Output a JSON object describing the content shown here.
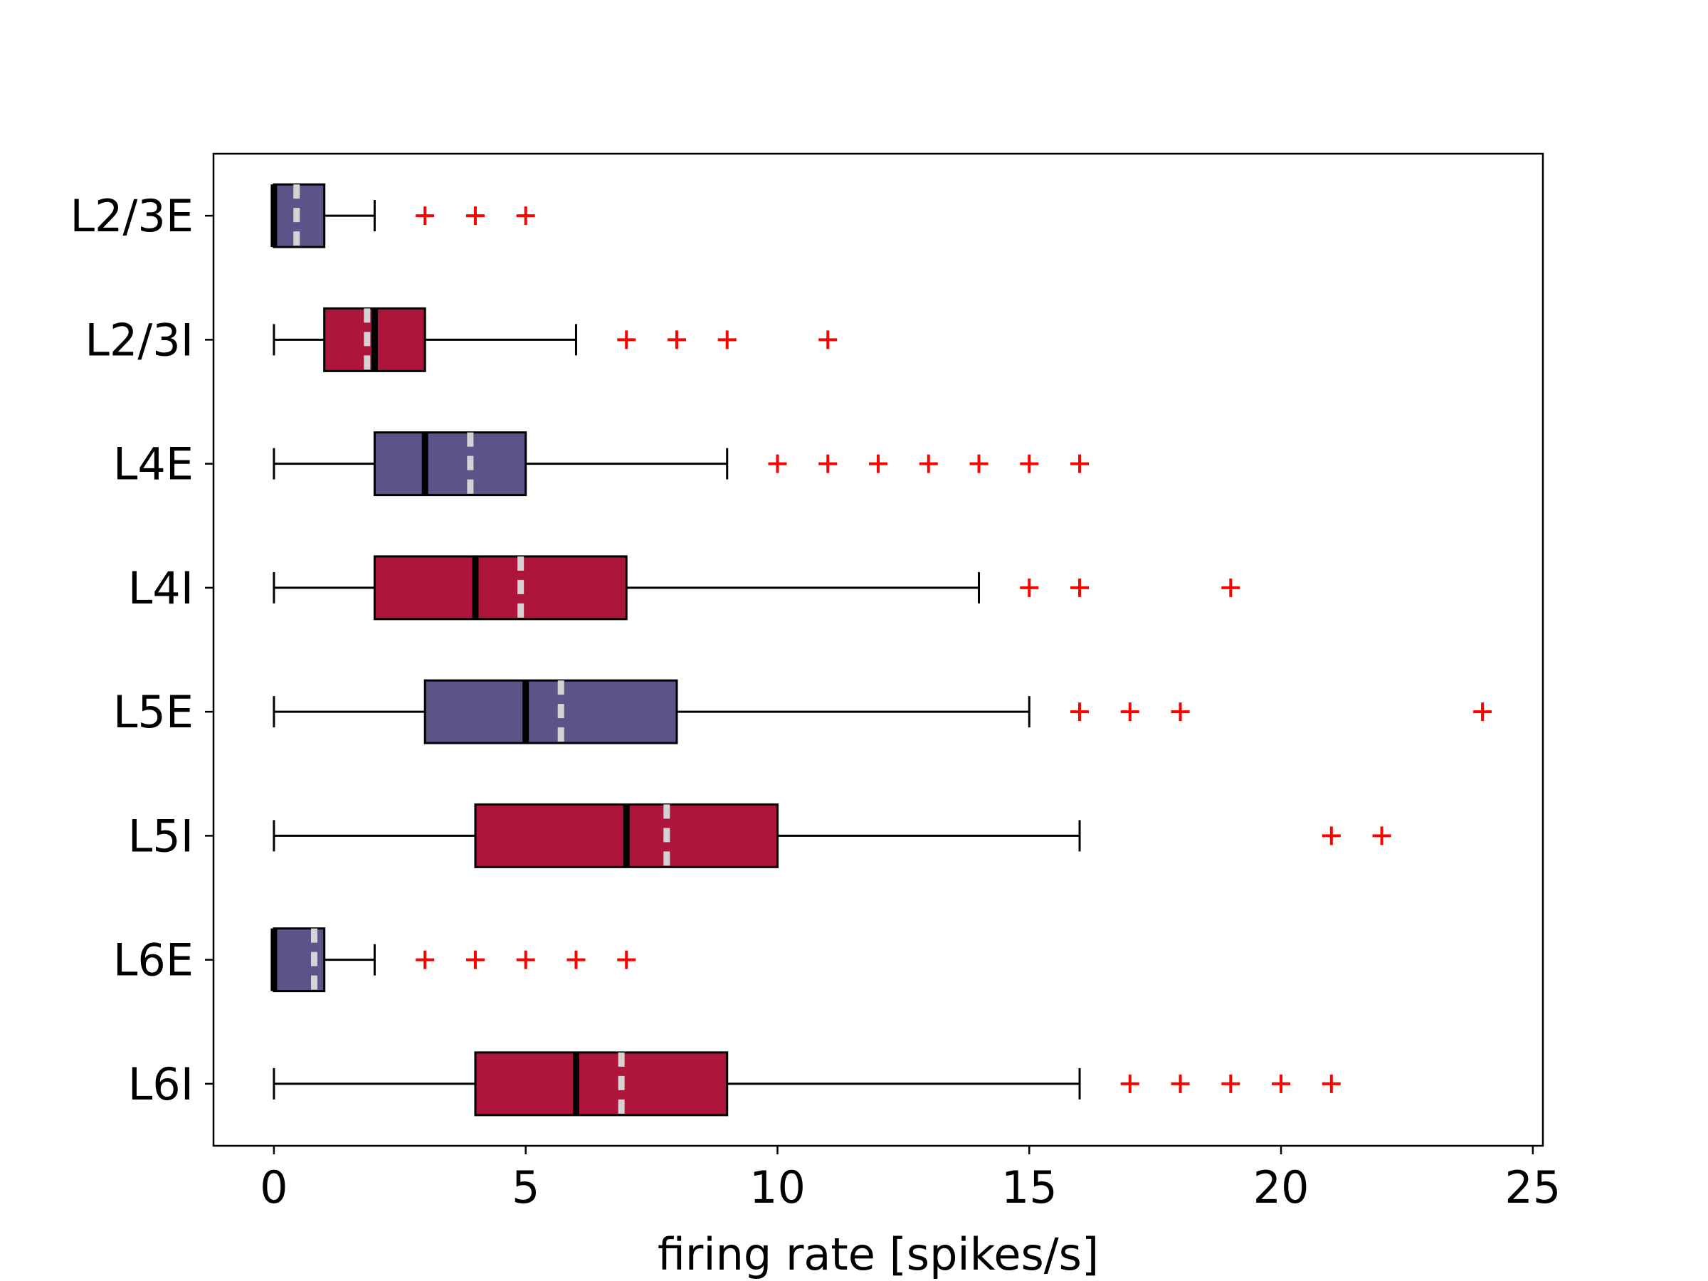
{
  "chart_data": {
    "type": "boxplot",
    "orientation": "horizontal",
    "xlabel": "firing rate [spikes/s]",
    "ylabel": "",
    "xlim": [
      -1.2,
      25.2
    ],
    "xticks": [
      0,
      5,
      10,
      15,
      20,
      25
    ],
    "grid": false,
    "legend": "none",
    "colors": {
      "excitatory": "#5b5488",
      "inhibitory": "#ad153a",
      "median": "#000000",
      "mean": "#d3d3d3",
      "outlier": "#ff0000"
    },
    "boxes": [
      {
        "label": "L2/3E",
        "color": "excitatory",
        "whisker_low": 0,
        "q1": 0,
        "median": 0,
        "mean": 0.45,
        "q3": 1,
        "whisker_high": 2,
        "outliers": [
          3,
          4,
          5
        ]
      },
      {
        "label": "L2/3I",
        "color": "inhibitory",
        "whisker_low": 0,
        "q1": 1,
        "median": 2,
        "mean": 1.85,
        "q3": 3,
        "whisker_high": 6,
        "outliers": [
          7,
          8,
          9,
          11
        ]
      },
      {
        "label": "L4E",
        "color": "excitatory",
        "whisker_low": 0,
        "q1": 2,
        "median": 3,
        "mean": 3.9,
        "q3": 5,
        "whisker_high": 9,
        "outliers": [
          10,
          11,
          12,
          13,
          14,
          15,
          16
        ]
      },
      {
        "label": "L4I",
        "color": "inhibitory",
        "whisker_low": 0,
        "q1": 2,
        "median": 4,
        "mean": 4.9,
        "q3": 7,
        "whisker_high": 14,
        "outliers": [
          15,
          16,
          19
        ]
      },
      {
        "label": "L5E",
        "color": "excitatory",
        "whisker_low": 0,
        "q1": 3,
        "median": 5,
        "mean": 5.7,
        "q3": 8,
        "whisker_high": 15,
        "outliers": [
          16,
          17,
          18,
          24
        ]
      },
      {
        "label": "L5I",
        "color": "inhibitory",
        "whisker_low": 0,
        "q1": 4,
        "median": 7,
        "mean": 7.8,
        "q3": 10,
        "whisker_high": 16,
        "outliers": [
          21,
          22
        ]
      },
      {
        "label": "L6E",
        "color": "excitatory",
        "whisker_low": 0,
        "q1": 0,
        "median": 0,
        "mean": 0.8,
        "q3": 1,
        "whisker_high": 2,
        "outliers": [
          3,
          4,
          5,
          6,
          7
        ]
      },
      {
        "label": "L6I",
        "color": "inhibitory",
        "whisker_low": 0,
        "q1": 4,
        "median": 6,
        "mean": 6.9,
        "q3": 9,
        "whisker_high": 16,
        "outliers": [
          17,
          18,
          19,
          20,
          21
        ]
      }
    ]
  }
}
